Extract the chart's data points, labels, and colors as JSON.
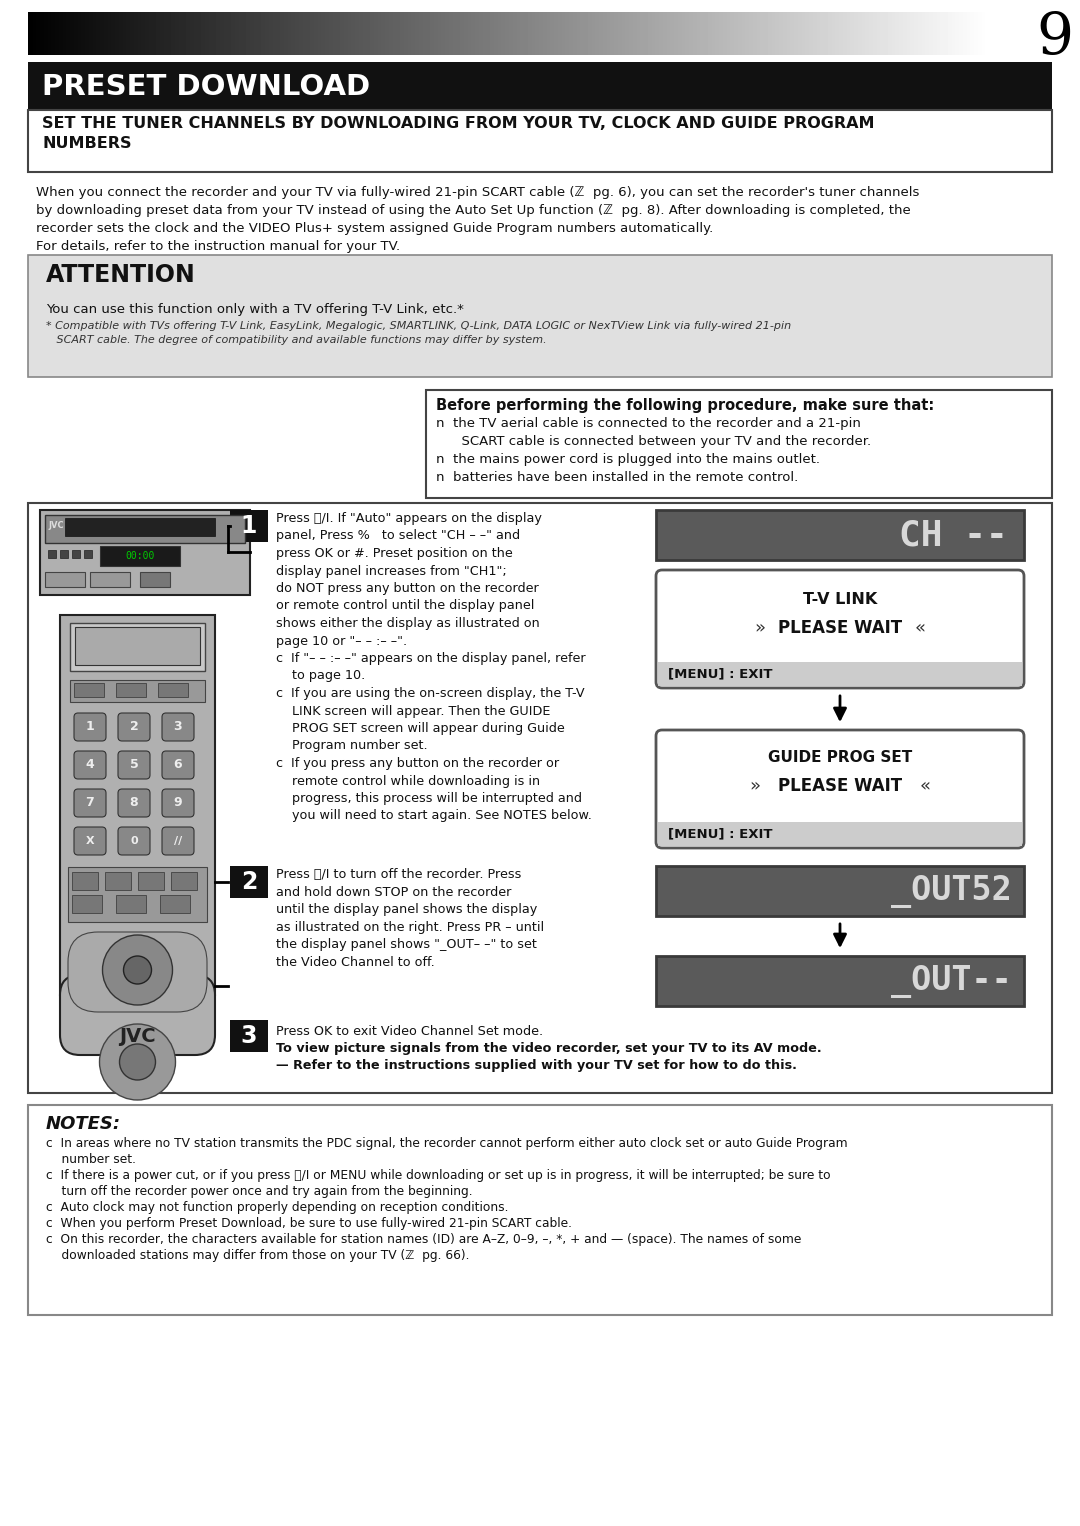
{
  "page_number": "9",
  "title": "PRESET DOWNLOAD",
  "subtitle_line1": "SET THE TUNER CHANNELS BY DOWNLOADING FROM YOUR TV, CLOCK AND GUIDE PROGRAM",
  "subtitle_line2": "NUMBERS",
  "intro_lines": [
    "When you connect the recorder and your TV via fully-wired 21-pin SCART cable (ℤ  pg. 6), you can set the recorder's tuner channels",
    "by downloading preset data from your TV instead of using the Auto Set Up function (ℤ  pg. 8). After downloading is completed, the",
    "recorder sets the clock and the VIDEO Plus+ system assigned Guide Program numbers automatically.",
    "For details, refer to the instruction manual for your TV."
  ],
  "attention_title": "ATTENTION",
  "attention_text1": "You can use this function only with a TV offering T-V Link, etc.*",
  "attention_text2a": "* Compatible with TVs offering T-V Link, EasyLink, Megalogic, SMARTLINK, Q-Link, DATA LOGIC or NexTView Link via fully-wired 21-pin",
  "attention_text2b": "   SCART cable. The degree of compatibility and available functions may differ by system.",
  "before_title": "Before performing the following procedure, make sure that:",
  "before_lines": [
    "n  the TV aerial cable is connected to the recorder and a 21-pin",
    "      SCART cable is connected between your TV and the recorder.",
    "n  the mains power cord is plugged into the mains outlet.",
    "n  batteries have been installed in the remote control."
  ],
  "step1_lines": [
    "Press ⏻/I. If \"Auto\" appears on the display",
    "panel, Press %   to select \"CH – –\" and",
    "press OK or #. Preset position on the",
    "display panel increases from \"CH1\";",
    "do NOT press any button on the recorder",
    "or remote control until the display panel",
    "shows either the display as illustrated on",
    "page 10 or \"– – :– –\".",
    "c  If \"– – :– –\" appears on the display panel, refer",
    "    to page 10.",
    "c  If you are using the on-screen display, the T-V",
    "    LINK screen will appear. Then the GUIDE",
    "    PROG SET screen will appear during Guide",
    "    Program number set.",
    "c  If you press any button on the recorder or",
    "    remote control while downloading is in",
    "    progress, this process will be interrupted and",
    "    you will need to start again. See NOTES below."
  ],
  "step2_lines": [
    "Press ⏻/I to turn off the recorder. Press",
    "and hold down STOP on the recorder",
    "until the display panel shows the display",
    "as illustrated on the right. Press PR – until",
    "the display panel shows \"_OUT– –\" to set",
    "the Video Channel to off."
  ],
  "step3_line1": "Press OK to exit Video Channel Set mode.",
  "step3_line2": "To view picture signals from the video recorder, set your TV to its AV mode.",
  "step3_line3": "— Refer to the instructions supplied with your TV set for how to do this.",
  "notes_title": "NOTES:",
  "notes_lines": [
    "c  In areas where no TV station transmits the PDC signal, the recorder cannot perform either auto clock set or auto Guide Program",
    "    number set.",
    "c  If there is a power cut, or if you press ⏻/I or MENU while downloading or set up is in progress, it will be interrupted; be sure to",
    "    turn off the recorder power once and try again from the beginning.",
    "c  Auto clock may not function properly depending on reception conditions.",
    "c  When you perform Preset Download, be sure to use fully-wired 21-pin SCART cable.",
    "c  On this recorder, the characters available for station names (ID) are A–Z, 0–9, –, *, + and — (space). The names of some",
    "    downloaded stations may differ from those on your TV (ℤ  pg. 66)."
  ],
  "bg": "#ffffff",
  "title_bg": "#111111",
  "title_fg": "#ffffff",
  "subtitle_bg": "#ffffff",
  "subtitle_fg": "#111111",
  "attn_bg": "#e0e0e0",
  "display_bg": "#666666",
  "display_fg": "#e8e8e8",
  "tv_bg": "#ffffff",
  "menu_bar_bg": "#cccccc",
  "step_box_bg": "#111111",
  "step_box_fg": "#ffffff",
  "border_color": "#555555",
  "notes_border": "#888888"
}
